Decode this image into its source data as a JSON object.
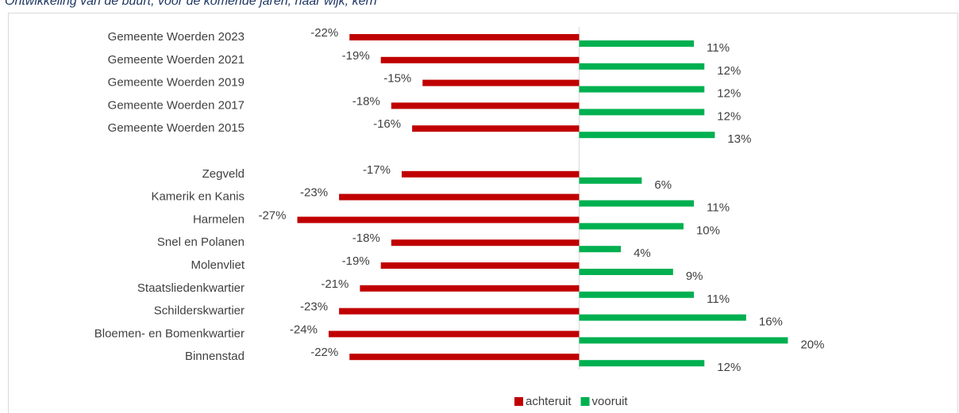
{
  "chart_data": {
    "type": "diverging-bar",
    "title": "Ontwikkeling van de buurt, voor de komende jaren, naar wijk, kern",
    "categories": [
      "Gemeente Woerden 2023",
      "Gemeente Woerden 2021",
      "Gemeente Woerden 2019",
      "Gemeente Woerden 2017",
      "Gemeente Woerden 2015",
      null,
      "Zegveld",
      "Kamerik en Kanis",
      "Harmelen",
      "Snel en Polanen",
      "Molenvliet",
      "Staatsliedenkwartier",
      "Schilderskwartier",
      "Bloemen- en Bomenkwartier",
      "Binnenstad"
    ],
    "series": [
      {
        "name": "achteruit",
        "color": "#c00000",
        "values": [
          -22,
          -19,
          -15,
          -18,
          -16,
          null,
          -17,
          -23,
          -27,
          -18,
          -19,
          -21,
          -23,
          -24,
          -22
        ],
        "value_labels": [
          "-22%",
          "-19%",
          "-15%",
          "-18%",
          "-16%",
          null,
          "-17%",
          "-23%",
          "-27%",
          "-18%",
          "-19%",
          "-21%",
          "-23%",
          "-24%",
          "-22%"
        ]
      },
      {
        "name": "vooruit",
        "color": "#00b050",
        "values": [
          11,
          12,
          12,
          12,
          13,
          null,
          6,
          11,
          10,
          4,
          9,
          11,
          16,
          20,
          12
        ],
        "value_labels": [
          "11%",
          "12%",
          "12%",
          "12%",
          "13%",
          null,
          "6%",
          "11%",
          "10%",
          "4%",
          "9%",
          "11%",
          "16%",
          "20%",
          "12%"
        ]
      }
    ],
    "legend": "bottom"
  }
}
